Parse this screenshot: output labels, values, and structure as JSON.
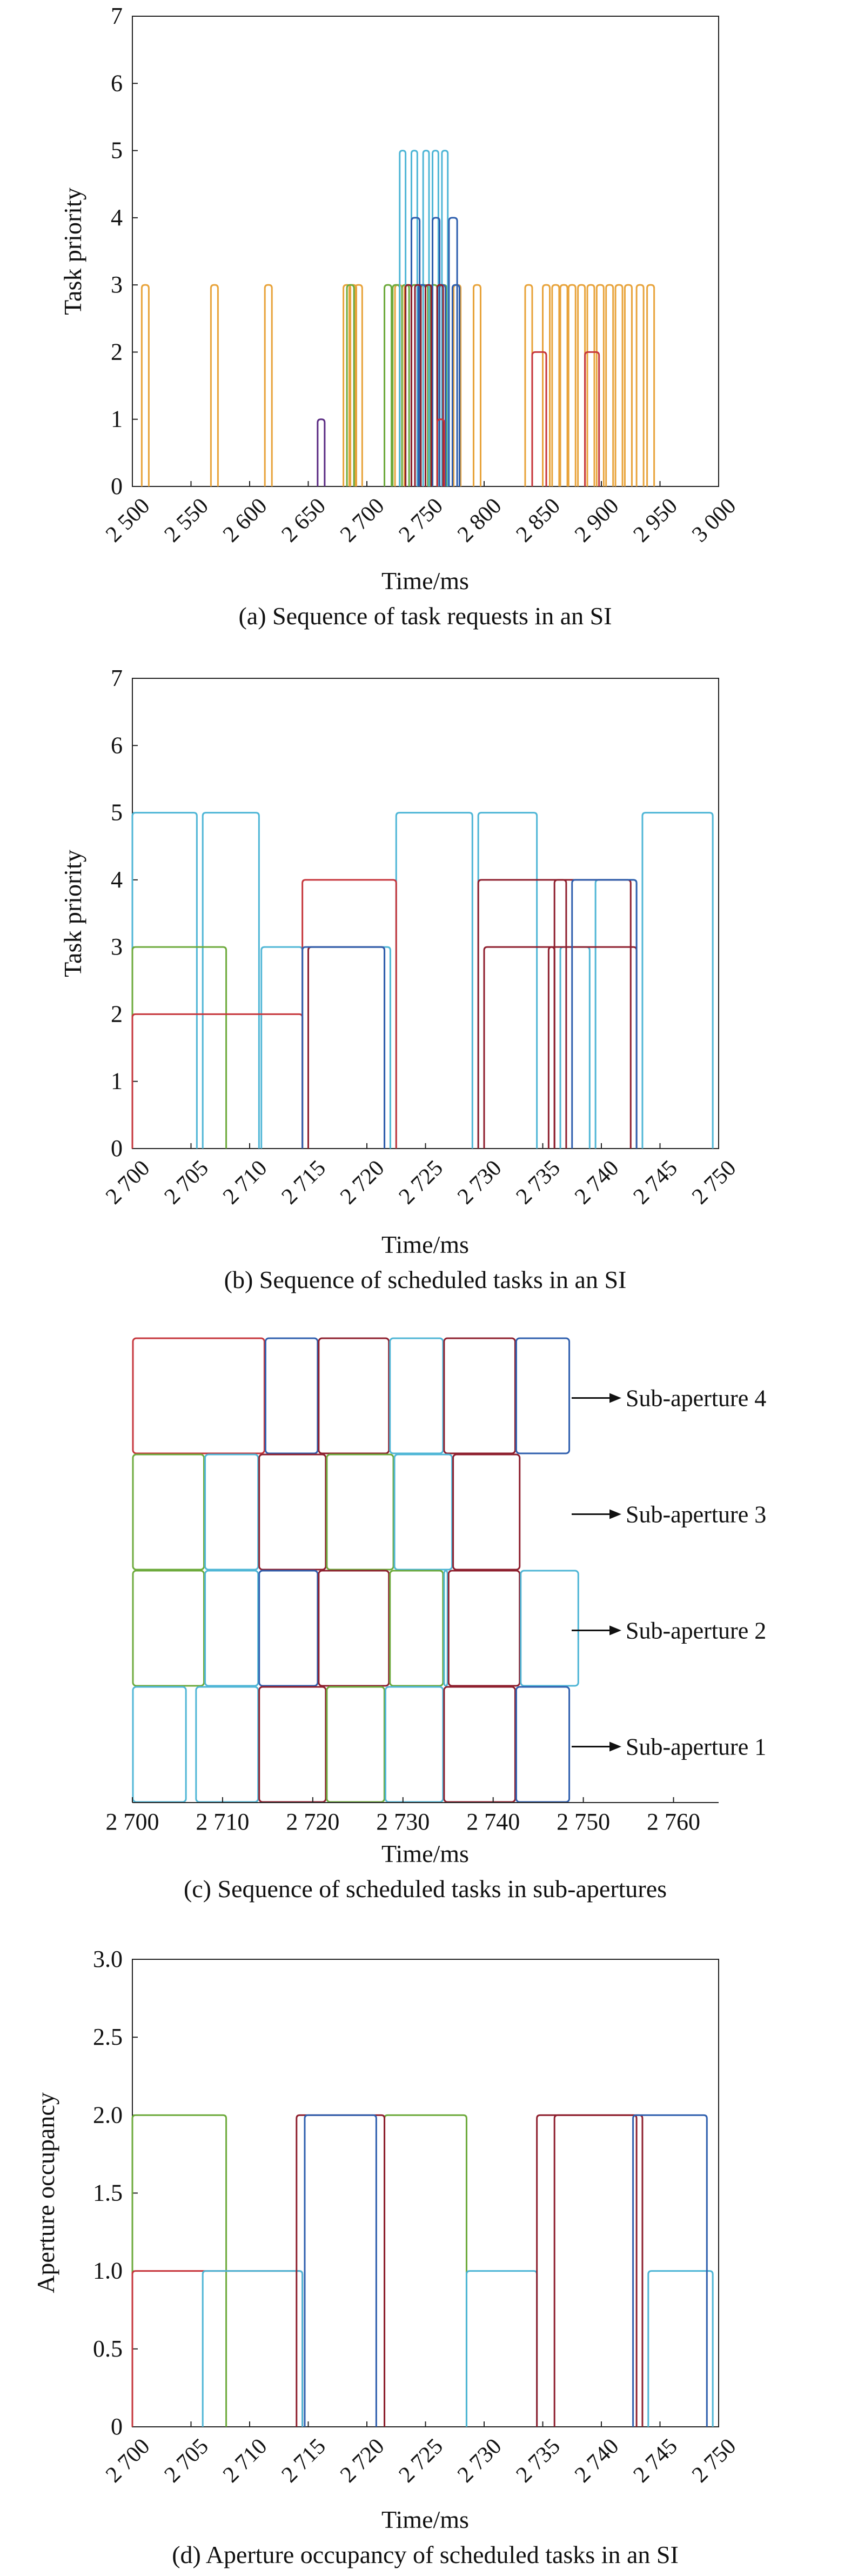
{
  "colors": {
    "orange": "#E8A33A",
    "cyan": "#4FB6D6",
    "blue": "#2F5FAE",
    "green": "#6DAA3C",
    "red": "#C6363C",
    "darkred": "#8E1F2E",
    "purple": "#5B2C83"
  },
  "chart_data": [
    {
      "type": "line",
      "caption": "(a) Sequence of task requests in an SI",
      "xlabel": "Time/ms",
      "ylabel": "Task priority",
      "xlim": [
        2500,
        3000
      ],
      "ylim": [
        0,
        7
      ],
      "xticks": [
        {
          "value": 2500,
          "label": "2 500"
        },
        {
          "value": 2550,
          "label": "2 550"
        },
        {
          "value": 2600,
          "label": "2 600"
        },
        {
          "value": 2650,
          "label": "2 650"
        },
        {
          "value": 2700,
          "label": "2 700"
        },
        {
          "value": 2750,
          "label": "2 750"
        },
        {
          "value": 2800,
          "label": "2 800"
        },
        {
          "value": 2850,
          "label": "2 850"
        },
        {
          "value": 2900,
          "label": "2 900"
        },
        {
          "value": 2950,
          "label": "2 950"
        },
        {
          "value": 3000,
          "label": "3 000"
        }
      ],
      "yticks": [
        {
          "value": 0,
          "label": "0"
        },
        {
          "value": 1,
          "label": "1"
        },
        {
          "value": 2,
          "label": "2"
        },
        {
          "value": 3,
          "label": "3"
        },
        {
          "value": 4,
          "label": "4"
        },
        {
          "value": 5,
          "label": "5"
        },
        {
          "value": 6,
          "label": "6"
        },
        {
          "value": 7,
          "label": "7"
        }
      ],
      "series": [
        {
          "color": "orange",
          "pulses": [
            [
              2508,
              2514,
              3
            ],
            [
              2567,
              2573,
              3
            ],
            [
              2613,
              2619,
              3
            ],
            [
              2680,
              2686,
              3
            ],
            [
              2685,
              2691,
              3
            ],
            [
              2690,
              2696,
              3
            ],
            [
              2724,
              2730,
              3
            ],
            [
              2732,
              2738,
              3
            ],
            [
              2774,
              2780,
              3
            ],
            [
              2791,
              2797,
              3
            ],
            [
              2835,
              2841,
              3
            ],
            [
              2850,
              2856,
              3
            ],
            [
              2858,
              2864,
              3
            ],
            [
              2865,
              2871,
              3
            ],
            [
              2872,
              2878,
              3
            ],
            [
              2880,
              2886,
              3
            ],
            [
              2888,
              2894,
              3
            ],
            [
              2896,
              2902,
              3
            ],
            [
              2904,
              2910,
              3
            ],
            [
              2912,
              2918,
              3
            ],
            [
              2920,
              2926,
              3
            ],
            [
              2930,
              2936,
              3
            ],
            [
              2939,
              2945,
              3
            ]
          ]
        },
        {
          "color": "green",
          "pulses": [
            [
              2683,
              2689,
              3
            ],
            [
              2715,
              2721,
              3
            ],
            [
              2722,
              2728,
              3
            ],
            [
              2730,
              2736,
              3
            ],
            [
              2738,
              2744,
              3
            ],
            [
              2746,
              2752,
              3
            ],
            [
              2754,
              2760,
              3
            ],
            [
              2762,
              2768,
              3
            ]
          ]
        },
        {
          "color": "cyan",
          "pulses": [
            [
              2728,
              2733,
              5
            ],
            [
              2738,
              2743,
              5
            ],
            [
              2748,
              2753,
              5
            ],
            [
              2756,
              2761,
              5
            ],
            [
              2764,
              2769,
              5
            ]
          ]
        },
        {
          "color": "blue",
          "pulses": [
            [
              2738,
              2745,
              4
            ],
            [
              2756,
              2762,
              4
            ],
            [
              2770,
              2777,
              4
            ],
            [
              2744,
              2750,
              3
            ],
            [
              2760,
              2767,
              3
            ],
            [
              2773,
              2779,
              3
            ]
          ]
        },
        {
          "color": "darkred",
          "pulses": [
            [
              2733,
              2738,
              3
            ],
            [
              2741,
              2746,
              3
            ],
            [
              2750,
              2755,
              3
            ],
            [
              2760,
              2765,
              3
            ]
          ]
        },
        {
          "color": "red",
          "pulses": [
            [
              2760,
              2766,
              1
            ],
            [
              2841,
              2853,
              2
            ],
            [
              2886,
              2898,
              2
            ]
          ]
        },
        {
          "color": "purple",
          "pulses": [
            [
              2658,
              2664,
              1
            ]
          ]
        }
      ]
    },
    {
      "type": "line",
      "caption": "(b) Sequence of scheduled tasks in an SI",
      "xlabel": "Time/ms",
      "ylabel": "Task priority",
      "xlim": [
        2700,
        2750
      ],
      "ylim": [
        0,
        7
      ],
      "xticks": [
        {
          "value": 2700,
          "label": "2 700"
        },
        {
          "value": 2705,
          "label": "2 705"
        },
        {
          "value": 2710,
          "label": "2 710"
        },
        {
          "value": 2715,
          "label": "2 715"
        },
        {
          "value": 2720,
          "label": "2 720"
        },
        {
          "value": 2725,
          "label": "2 725"
        },
        {
          "value": 2730,
          "label": "2 730"
        },
        {
          "value": 2735,
          "label": "2 735"
        },
        {
          "value": 2740,
          "label": "2 740"
        },
        {
          "value": 2745,
          "label": "2 745"
        },
        {
          "value": 2750,
          "label": "2 750"
        }
      ],
      "yticks": [
        {
          "value": 0,
          "label": "0"
        },
        {
          "value": 1,
          "label": "1"
        },
        {
          "value": 2,
          "label": "2"
        },
        {
          "value": 3,
          "label": "3"
        },
        {
          "value": 4,
          "label": "4"
        },
        {
          "value": 5,
          "label": "5"
        },
        {
          "value": 6,
          "label": "6"
        },
        {
          "value": 7,
          "label": "7"
        }
      ],
      "series": [
        {
          "color": "cyan",
          "pulses": [
            [
              2700,
              2705.5,
              5
            ],
            [
              2706,
              2710.8,
              5
            ],
            [
              2711,
              2714.5,
              3
            ],
            [
              2715,
              2722,
              3
            ],
            [
              2722.5,
              2729,
              5
            ],
            [
              2729.5,
              2734.5,
              5
            ],
            [
              2736.5,
              2739,
              3
            ],
            [
              2739.5,
              2743,
              4
            ],
            [
              2743.5,
              2749.5,
              5
            ]
          ]
        },
        {
          "color": "green",
          "pulses": [
            [
              2700,
              2708,
              3
            ]
          ]
        },
        {
          "color": "red",
          "pulses": [
            [
              2700,
              2714.5,
              2
            ],
            [
              2714.5,
              2722.5,
              4
            ]
          ]
        },
        {
          "color": "darkred",
          "pulses": [
            [
              2715,
              2721.5,
              3
            ],
            [
              2729.5,
              2737,
              4
            ],
            [
              2730,
              2736,
              3
            ],
            [
              2735.5,
              2743,
              3
            ],
            [
              2736,
              2742.5,
              4
            ]
          ]
        },
        {
          "color": "blue",
          "pulses": [
            [
              2714.5,
              2721.5,
              3
            ],
            [
              2737.5,
              2743,
              4
            ]
          ]
        }
      ]
    },
    {
      "type": "timeline",
      "caption": "(c) Sequence of scheduled tasks in sub-apertures",
      "xlabel": "Time/ms",
      "xlim": [
        2700,
        2765
      ],
      "xticks": [
        {
          "value": 2700,
          "label": "2 700"
        },
        {
          "value": 2710,
          "label": "2 710"
        },
        {
          "value": 2720,
          "label": "2 720"
        },
        {
          "value": 2730,
          "label": "2 730"
        },
        {
          "value": 2740,
          "label": "2 740"
        },
        {
          "value": 2750,
          "label": "2 750"
        },
        {
          "value": 2760,
          "label": "2 760"
        }
      ],
      "lanes": [
        {
          "label": "Sub-aperture 4",
          "boxes": [
            [
              2700,
              2714.7,
              "red"
            ],
            [
              2714.7,
              2720.6,
              "blue"
            ],
            [
              2720.6,
              2728.5,
              "darkred"
            ],
            [
              2728.5,
              2734.5,
              "cyan"
            ],
            [
              2734.5,
              2742.5,
              "darkred"
            ],
            [
              2742.5,
              2748.5,
              "blue"
            ]
          ]
        },
        {
          "label": "Sub-aperture 3",
          "boxes": [
            [
              2700,
              2708,
              "green"
            ],
            [
              2708,
              2714,
              "cyan"
            ],
            [
              2714,
              2721.5,
              "darkred"
            ],
            [
              2721.5,
              2729,
              "green"
            ],
            [
              2729,
              2735.5,
              "cyan"
            ],
            [
              2735.5,
              2743,
              "darkred"
            ]
          ]
        },
        {
          "label": "Sub-aperture 2",
          "boxes": [
            [
              2700,
              2708,
              "green"
            ],
            [
              2708,
              2714,
              "cyan"
            ],
            [
              2714,
              2720.6,
              "blue"
            ],
            [
              2720.6,
              2728.5,
              "darkred"
            ],
            [
              2728.5,
              2734.5,
              "green"
            ],
            [
              2734.5,
              2735,
              "cyan"
            ],
            [
              2735,
              2743,
              "darkred"
            ],
            [
              2743,
              2749.5,
              "cyan"
            ]
          ]
        },
        {
          "label": "Sub-aperture 1",
          "boxes": [
            [
              2700,
              2706,
              "cyan"
            ],
            [
              2707,
              2714,
              "cyan"
            ],
            [
              2714,
              2721.5,
              "darkred"
            ],
            [
              2721.5,
              2728,
              "green"
            ],
            [
              2728,
              2734.5,
              "cyan"
            ],
            [
              2734.5,
              2742.5,
              "darkred"
            ],
            [
              2742.5,
              2748.5,
              "blue"
            ]
          ]
        }
      ]
    },
    {
      "type": "line",
      "caption": "(d) Aperture occupancy of scheduled tasks in an SI",
      "xlabel": "Time/ms",
      "ylabel": "Aperture occupancy",
      "xlim": [
        2700,
        2750
      ],
      "ylim": [
        0,
        3
      ],
      "xticks": [
        {
          "value": 2700,
          "label": "2 700"
        },
        {
          "value": 2705,
          "label": "2 705"
        },
        {
          "value": 2710,
          "label": "2 710"
        },
        {
          "value": 2715,
          "label": "2 715"
        },
        {
          "value": 2720,
          "label": "2 720"
        },
        {
          "value": 2725,
          "label": "2 725"
        },
        {
          "value": 2730,
          "label": "2 730"
        },
        {
          "value": 2735,
          "label": "2 735"
        },
        {
          "value": 2740,
          "label": "2 740"
        },
        {
          "value": 2745,
          "label": "2 745"
        },
        {
          "value": 2750,
          "label": "2 750"
        }
      ],
      "yticks": [
        {
          "value": 0,
          "label": "0"
        },
        {
          "value": 0.5,
          "label": "0.5"
        },
        {
          "value": 1,
          "label": "1.0"
        },
        {
          "value": 1.5,
          "label": "1.5"
        },
        {
          "value": 2,
          "label": "2.0"
        },
        {
          "value": 2.5,
          "label": "2.5"
        },
        {
          "value": 3,
          "label": "3.0"
        }
      ],
      "series": [
        {
          "color": "green",
          "pulses": [
            [
              2700,
              2708,
              2
            ],
            [
              2721.5,
              2728.5,
              2
            ]
          ]
        },
        {
          "color": "red",
          "pulses": [
            [
              2700,
              2714.5,
              1
            ]
          ]
        },
        {
          "color": "cyan",
          "pulses": [
            [
              2706,
              2714.5,
              1
            ],
            [
              2728.5,
              2734.5,
              1
            ],
            [
              2744,
              2749.5,
              1
            ]
          ]
        },
        {
          "color": "darkred",
          "pulses": [
            [
              2714,
              2721.5,
              2
            ],
            [
              2734.5,
              2743,
              2
            ],
            [
              2736,
              2743.5,
              2
            ]
          ]
        },
        {
          "color": "blue",
          "pulses": [
            [
              2714.7,
              2720.8,
              2
            ],
            [
              2742.7,
              2749,
              2
            ]
          ]
        }
      ]
    }
  ]
}
